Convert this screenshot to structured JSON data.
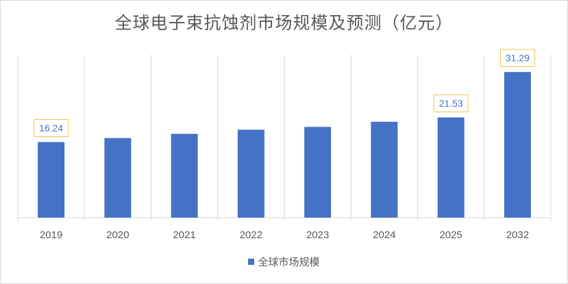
{
  "chart_data": {
    "type": "bar",
    "title": "全球电子束抗蚀剂市场规模及预测（亿元）",
    "categories": [
      "2019",
      "2020",
      "2021",
      "2022",
      "2023",
      "2024",
      "2025",
      "2032"
    ],
    "series": [
      {
        "name": "全球市场规模",
        "values": [
          16.24,
          17.1,
          18.0,
          18.9,
          19.5,
          20.6,
          21.53,
          31.29
        ],
        "color": "#4472c4"
      }
    ],
    "data_labels": [
      {
        "category": "2019",
        "text": "16.24"
      },
      {
        "category": "2025",
        "text": "21.53"
      },
      {
        "category": "2032",
        "text": "31.29"
      }
    ],
    "ylim": [
      0,
      35
    ],
    "grid": "vertical-category-lines",
    "legend_position": "bottom"
  }
}
